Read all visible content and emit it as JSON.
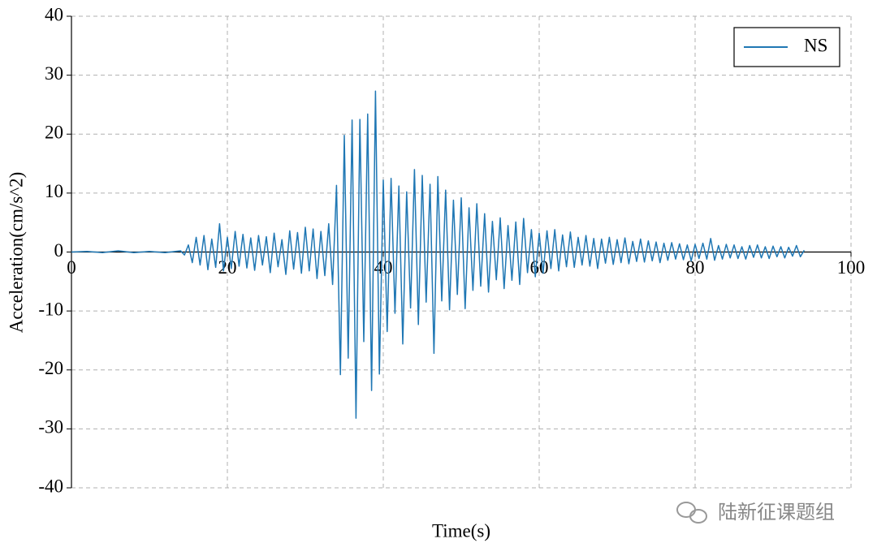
{
  "chart_data": {
    "type": "line",
    "x_label": "Time(s)",
    "y_label": "Acceleration(cm/s^2)",
    "watermark": "陆新征课题组",
    "legend": "upper right",
    "grid": true,
    "xlim": [
      0,
      100
    ],
    "xticks": [
      0,
      20,
      40,
      60,
      80,
      100
    ],
    "ylim": [
      -40,
      40
    ],
    "yticks": [
      -40,
      -30,
      -20,
      -10,
      0,
      10,
      20,
      30,
      40
    ],
    "x": [
      0,
      2,
      4,
      6,
      8,
      10,
      12,
      14,
      14.5,
      15,
      15.5,
      16,
      16.5,
      17,
      17.5,
      18,
      18.5,
      19,
      19.5,
      20,
      20.5,
      21,
      21.5,
      22,
      22.5,
      23,
      23.5,
      24,
      24.5,
      25,
      25.5,
      26,
      26.5,
      27,
      27.5,
      28,
      28.5,
      29,
      29.5,
      30,
      30.5,
      31,
      31.5,
      32,
      32.5,
      33,
      33.5,
      34,
      34.5,
      35,
      35.5,
      36,
      36.5,
      37,
      37.5,
      38,
      38.5,
      39,
      39.5,
      40,
      40.5,
      41,
      41.5,
      42,
      42.5,
      43,
      43.5,
      44,
      44.5,
      45,
      45.5,
      46,
      46.5,
      47,
      47.5,
      48,
      48.5,
      49,
      49.5,
      50,
      50.5,
      51,
      51.5,
      52,
      52.5,
      53,
      53.5,
      54,
      54.5,
      55,
      55.5,
      56,
      56.5,
      57,
      57.5,
      58,
      58.5,
      59,
      59.5,
      60,
      60.5,
      61,
      61.5,
      62,
      62.5,
      63,
      63.5,
      64,
      64.5,
      65,
      65.5,
      66,
      66.5,
      67,
      67.5,
      68,
      68.5,
      69,
      69.5,
      70,
      70.5,
      71,
      71.5,
      72,
      72.5,
      73,
      73.5,
      74,
      74.5,
      75,
      75.5,
      76,
      76.5,
      77,
      77.5,
      78,
      78.5,
      79,
      79.5,
      80,
      80.5,
      81,
      81.5,
      82,
      82.5,
      83,
      83.5,
      84,
      84.5,
      85,
      85.5,
      86,
      86.5,
      87,
      87.5,
      88,
      88.5,
      89,
      89.5,
      90,
      90.5,
      91,
      91.5,
      92,
      92.5,
      93,
      93.5,
      94
    ],
    "series": [
      {
        "name": "NS",
        "color": "#1f77b4",
        "values": [
          0,
          0.1,
          -0.1,
          0.2,
          -0.1,
          0.1,
          -0.1,
          0.2,
          -0.5,
          1.2,
          -1.8,
          2.5,
          -2.2,
          2.8,
          -3,
          2.2,
          -2.6,
          4.8,
          -3.2,
          2.5,
          -2.8,
          3.5,
          -2.4,
          3,
          -2.7,
          2.4,
          -3.1,
          2.8,
          -2.2,
          2.6,
          -3.5,
          3.2,
          -2.5,
          2.1,
          -3.8,
          3.6,
          -2.9,
          3.3,
          -3.6,
          4.2,
          -3.2,
          3.9,
          -4.5,
          3.5,
          -4,
          4.8,
          -5.5,
          11.3,
          -20.8,
          19.8,
          -18,
          22.4,
          -28.2,
          22.5,
          -15.2,
          23.4,
          -23.5,
          27.3,
          -20.7,
          12.2,
          -13.5,
          12.5,
          -10.4,
          11.2,
          -15.6,
          10.2,
          -9.5,
          14,
          -12.3,
          13,
          -8.5,
          11.5,
          -17.2,
          12.8,
          -8.3,
          10.5,
          -9.8,
          8.8,
          -7.2,
          9.2,
          -9.6,
          7.5,
          -6.5,
          8.2,
          -5.8,
          6.5,
          -6.8,
          5.2,
          -4.7,
          5.8,
          -6.2,
          4.5,
          -4.8,
          5.1,
          -5.5,
          5.7,
          -3.5,
          3.8,
          -4.2,
          3.2,
          -3.6,
          3.6,
          -2.8,
          3.8,
          -3.2,
          2.9,
          -2.5,
          3.4,
          -2.6,
          2.5,
          -2.2,
          2.8,
          -2.4,
          2.3,
          -2.8,
          2.2,
          -1.9,
          2.5,
          -2.1,
          2.1,
          -1.8,
          2.4,
          -2,
          1.8,
          -1.6,
          2.2,
          -1.7,
          1.9,
          -1.5,
          1.7,
          -1.8,
          1.5,
          -1.4,
          1.6,
          -1.2,
          1.4,
          -1.3,
          1.2,
          -1.5,
          1.3,
          -1.1,
          1.5,
          -1.2,
          2.3,
          -1.4,
          1.1,
          -1.2,
          1.3,
          -1,
          1.2,
          -1.1,
          0.9,
          -1.2,
          1.1,
          -0.9,
          1.2,
          -1,
          0.9,
          -1.1,
          1,
          -0.8,
          0.9,
          -1,
          0.8,
          -0.7,
          1.1,
          -0.8,
          0.3
        ]
      }
    ]
  }
}
